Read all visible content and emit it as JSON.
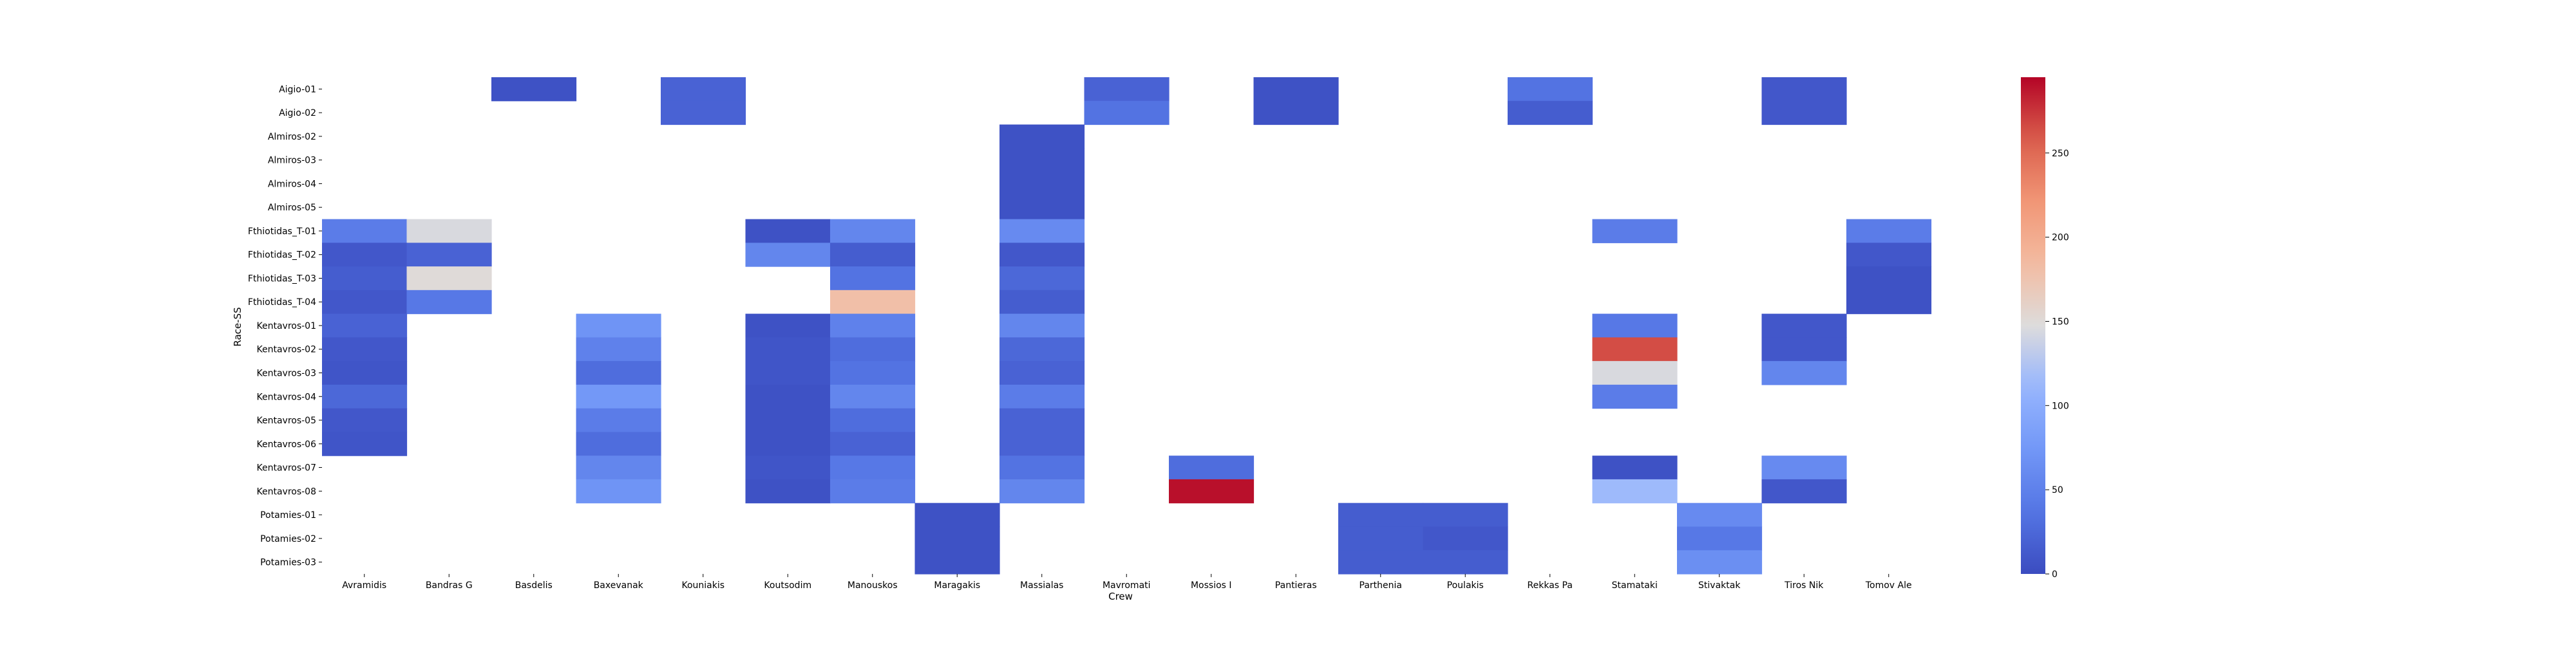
{
  "chart_data": {
    "type": "heatmap",
    "title": "",
    "xlabel": "Crew",
    "ylabel": "Race-SS",
    "x": [
      "Avramidis",
      "Bandras G",
      "Basdelis",
      "Baxevanak",
      "Kouniakis",
      "Koutsodim",
      "Manouskos",
      "Maragakis",
      "Massialas",
      "Mavromati",
      "Mossios I",
      "Pantieras",
      "Parthenia",
      "Poulakis",
      "Rekkas Pa",
      "Stamataki",
      "Stivaktak",
      "Tiros Nik",
      "Tomov Ale"
    ],
    "y": [
      "Aigio-01",
      "Aigio-02",
      "Almiros-02",
      "Almiros-03",
      "Almiros-04",
      "Almiros-05",
      "Fthiotidas_T-01",
      "Fthiotidas_T-02",
      "Fthiotidas_T-03",
      "Fthiotidas_T-04",
      "Kentavros-01",
      "Kentavros-02",
      "Kentavros-03",
      "Kentavros-04",
      "Kentavros-05",
      "Kentavros-06",
      "Kentavros-07",
      "Kentavros-08",
      "Potamies-01",
      "Potamies-02",
      "Potamies-03"
    ],
    "values": [
      [
        null,
        null,
        5,
        null,
        20,
        null,
        null,
        null,
        null,
        20,
        null,
        5,
        null,
        null,
        35,
        null,
        null,
        10,
        null
      ],
      [
        null,
        null,
        null,
        null,
        20,
        null,
        null,
        null,
        null,
        35,
        null,
        5,
        null,
        null,
        15,
        null,
        null,
        10,
        null
      ],
      [
        null,
        null,
        null,
        null,
        null,
        null,
        null,
        null,
        5,
        null,
        null,
        null,
        null,
        null,
        null,
        null,
        null,
        null,
        null
      ],
      [
        null,
        null,
        null,
        null,
        null,
        null,
        null,
        null,
        5,
        null,
        null,
        null,
        null,
        null,
        null,
        null,
        null,
        null,
        null
      ],
      [
        null,
        null,
        null,
        null,
        null,
        null,
        null,
        null,
        5,
        null,
        null,
        null,
        null,
        null,
        null,
        null,
        null,
        null,
        null
      ],
      [
        null,
        null,
        null,
        null,
        null,
        null,
        null,
        null,
        5,
        null,
        null,
        null,
        null,
        null,
        null,
        null,
        null,
        null,
        null
      ],
      [
        45,
        145,
        null,
        null,
        null,
        5,
        55,
        null,
        60,
        null,
        null,
        null,
        null,
        null,
        null,
        45,
        null,
        null,
        45
      ],
      [
        10,
        20,
        null,
        null,
        null,
        55,
        15,
        null,
        10,
        null,
        null,
        null,
        null,
        null,
        null,
        null,
        null,
        null,
        10
      ],
      [
        15,
        150,
        null,
        null,
        null,
        null,
        35,
        null,
        25,
        null,
        null,
        null,
        null,
        null,
        null,
        null,
        null,
        null,
        5
      ],
      [
        10,
        40,
        null,
        null,
        null,
        null,
        180,
        null,
        15,
        null,
        null,
        null,
        null,
        null,
        null,
        null,
        null,
        null,
        5
      ],
      [
        20,
        null,
        null,
        70,
        null,
        5,
        50,
        null,
        55,
        null,
        null,
        null,
        null,
        null,
        null,
        40,
        null,
        10,
        null
      ],
      [
        10,
        null,
        null,
        50,
        null,
        8,
        30,
        null,
        25,
        null,
        null,
        null,
        null,
        null,
        null,
        265,
        null,
        10,
        null
      ],
      [
        8,
        null,
        null,
        30,
        null,
        8,
        35,
        null,
        20,
        null,
        null,
        null,
        null,
        null,
        null,
        145,
        null,
        55,
        null
      ],
      [
        25,
        null,
        null,
        75,
        null,
        5,
        55,
        null,
        45,
        null,
        null,
        null,
        null,
        null,
        null,
        45,
        null,
        null,
        null
      ],
      [
        10,
        null,
        null,
        45,
        null,
        5,
        30,
        null,
        20,
        null,
        null,
        null,
        null,
        null,
        null,
        null,
        null,
        null,
        null
      ],
      [
        8,
        null,
        null,
        30,
        null,
        5,
        20,
        null,
        20,
        null,
        null,
        null,
        null,
        null,
        null,
        null,
        null,
        null,
        null
      ],
      [
        null,
        null,
        null,
        55,
        null,
        8,
        40,
        null,
        35,
        null,
        30,
        null,
        null,
        null,
        null,
        5,
        null,
        60,
        null
      ],
      [
        null,
        null,
        null,
        70,
        null,
        5,
        45,
        null,
        55,
        null,
        290,
        null,
        null,
        null,
        null,
        115,
        null,
        10,
        null
      ],
      [
        null,
        null,
        null,
        null,
        null,
        null,
        null,
        5,
        null,
        null,
        null,
        null,
        15,
        15,
        null,
        null,
        60,
        null,
        null
      ],
      [
        null,
        null,
        null,
        null,
        null,
        null,
        null,
        5,
        null,
        null,
        null,
        null,
        15,
        10,
        null,
        null,
        40,
        null,
        null
      ],
      [
        null,
        null,
        null,
        null,
        null,
        null,
        null,
        5,
        null,
        null,
        null,
        null,
        15,
        15,
        null,
        null,
        65,
        null,
        null
      ]
    ],
    "colorscale": "coolwarm",
    "vmin": 0,
    "vmax": 295,
    "colorbar_ticks": [
      0,
      50,
      100,
      150,
      200,
      250
    ],
    "grid": false,
    "legend": "colorbar-right"
  }
}
